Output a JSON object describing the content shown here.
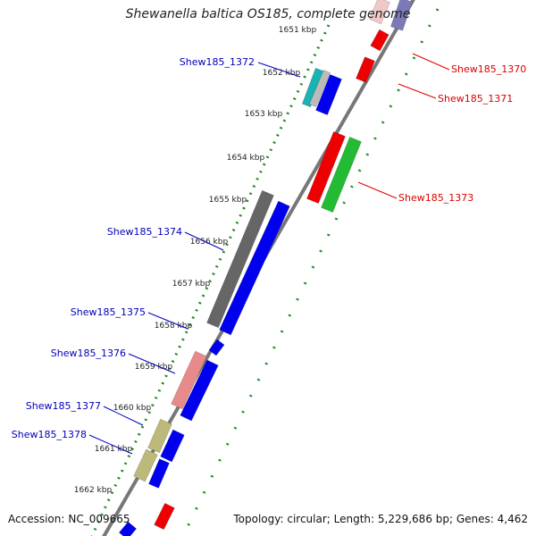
{
  "title": "Shewanella baltica OS185, complete genome",
  "footer": {
    "accession_label": "Accession:",
    "accession": "NC_009665",
    "summary": "Topology: circular; Length: 5,229,686 bp; Genes: 4,462"
  },
  "colors": {
    "background": "#ffffff",
    "backbone": "#777777",
    "ruler_dots": "#1f8a1f",
    "forward_strand_gene": "#0000ee",
    "reverse_strand_gene": "#ee0000",
    "gene_label_blue": "#0000bb",
    "gene_label_red": "#dd0000"
  },
  "ruler": {
    "unit": "kbp",
    "labels": [
      "1651 kbp",
      "1652 kbp",
      "1653 kbp",
      "1654 kbp",
      "1655 kbp",
      "1656 kbp",
      "1657 kbp",
      "1658 kbp",
      "1659 kbp",
      "1660 kbp",
      "1661 kbp",
      "1662 kbp"
    ]
  },
  "gene_labels": [
    {
      "id": "Shew185_1370",
      "side": "right",
      "color": "#dd0000"
    },
    {
      "id": "Shew185_1371",
      "side": "right",
      "color": "#dd0000"
    },
    {
      "id": "Shew185_1372",
      "side": "left",
      "color": "#0000bb"
    },
    {
      "id": "Shew185_1373",
      "side": "right",
      "color": "#dd0000"
    },
    {
      "id": "Shew185_1374",
      "side": "left",
      "color": "#0000bb"
    },
    {
      "id": "Shew185_1375",
      "side": "left",
      "color": "#0000bb"
    },
    {
      "id": "Shew185_1376",
      "side": "left",
      "color": "#0000bb"
    },
    {
      "id": "Shew185_1377",
      "side": "left",
      "color": "#0000bb"
    },
    {
      "id": "Shew185_1378",
      "side": "left",
      "color": "#0000bb"
    }
  ]
}
